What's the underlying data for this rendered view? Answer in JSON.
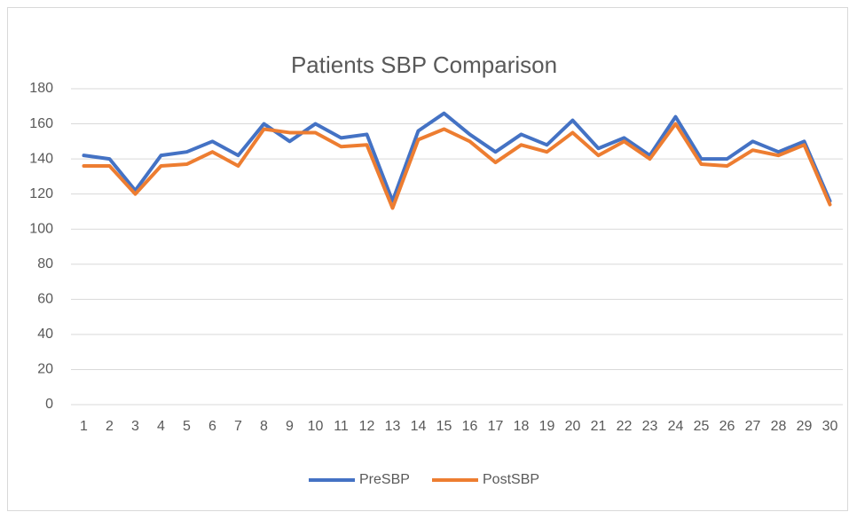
{
  "chart_data": {
    "type": "line",
    "title": "Patients SBP Comparison",
    "categories": [
      "1",
      "2",
      "3",
      "4",
      "5",
      "6",
      "7",
      "8",
      "9",
      "10",
      "11",
      "12",
      "13",
      "14",
      "15",
      "16",
      "17",
      "18",
      "19",
      "20",
      "21",
      "22",
      "23",
      "24",
      "25",
      "26",
      "27",
      "28",
      "29",
      "30"
    ],
    "series": [
      {
        "name": "PreSBP",
        "color": "#4472c4",
        "values": [
          142,
          140,
          122,
          142,
          144,
          150,
          142,
          160,
          150,
          160,
          152,
          154,
          116,
          156,
          166,
          154,
          144,
          154,
          148,
          162,
          146,
          152,
          142,
          164,
          140,
          140,
          150,
          144,
          150,
          116
        ]
      },
      {
        "name": "PostSBP",
        "color": "#ed7d31",
        "values": [
          136,
          136,
          120,
          136,
          137,
          144,
          136,
          157,
          155,
          155,
          147,
          148,
          112,
          151,
          157,
          150,
          138,
          148,
          144,
          155,
          142,
          150,
          140,
          160,
          137,
          136,
          145,
          142,
          148,
          114
        ]
      }
    ],
    "ylim": [
      0,
      180
    ],
    "yticks": [
      0,
      20,
      40,
      60,
      80,
      100,
      120,
      140,
      160,
      180
    ],
    "grid": true,
    "legend": "bottom"
  }
}
